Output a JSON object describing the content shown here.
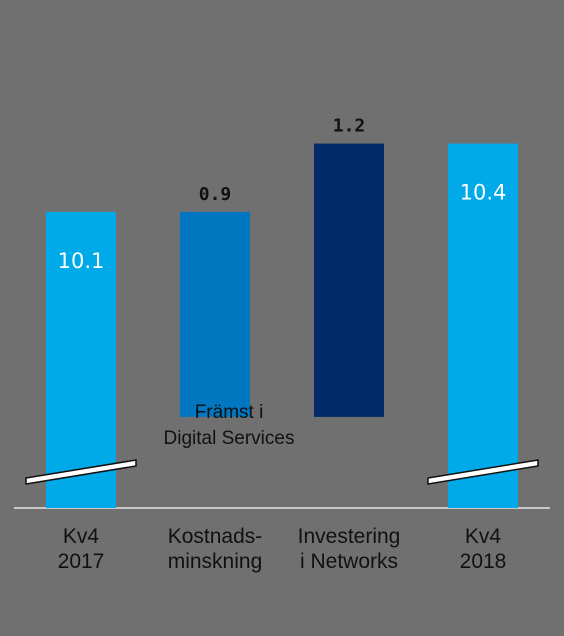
{
  "chart_data": {
    "type": "bar",
    "subtype": "waterfall",
    "categories": [
      [
        "Kv4",
        "2017"
      ],
      [
        "Kostnads-",
        "minskning"
      ],
      [
        "Investering",
        "i Networks"
      ],
      [
        "Kv4",
        "2018"
      ]
    ],
    "values": [
      10.1,
      -0.9,
      1.2,
      10.4
    ],
    "value_labels": [
      "10.1",
      "0.9",
      "1.2",
      "10.4"
    ],
    "annotation": [
      "Främst i",
      "Digital Services"
    ],
    "axis_break": true,
    "y_range": [
      8.8,
      10.6
    ],
    "colors": [
      "#00a9e8",
      "#0177c1",
      "#012a69",
      "#00a9e8"
    ],
    "label_positions": [
      "inside",
      "above",
      "above",
      "inside"
    ]
  }
}
